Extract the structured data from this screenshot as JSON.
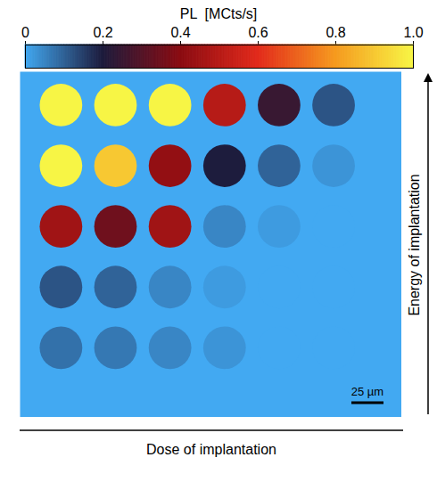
{
  "chart_data": {
    "type": "heatmap",
    "x_label": "Dose of implantation",
    "y_label": "Energy of implantation",
    "tick_labels": false,
    "cells": [
      [
        1.0,
        1.0,
        1.0,
        0.5,
        0.25,
        0.12
      ],
      [
        1.0,
        0.9,
        0.42,
        0.2,
        0.1,
        0.03
      ],
      [
        0.45,
        0.35,
        0.45,
        0.05,
        0.02,
        0
      ],
      [
        0.12,
        0.1,
        0.05,
        0.02,
        0,
        0
      ],
      [
        0.08,
        0.07,
        0.05,
        0.03,
        0,
        0
      ]
    ],
    "colorbar": {
      "label": "PL  [MCts/s]",
      "range": [
        0,
        1
      ],
      "ticks": [
        0,
        0.2,
        0.4,
        0.6,
        0.8,
        {
          "value": 1,
          "label": "1.0"
        }
      ]
    },
    "annotations": [
      "25 µm"
    ]
  }
}
